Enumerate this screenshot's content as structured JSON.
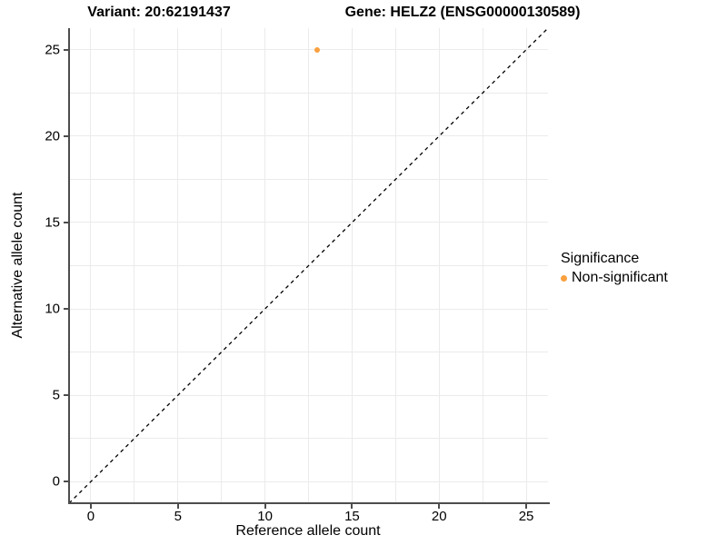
{
  "header": {
    "variant_title": "Variant: 20:62191437",
    "gene_title": "Gene: HELZ2 (ENSG00000130589)"
  },
  "chart_data": {
    "type": "scatter",
    "title_left": "Variant: 20:62191437",
    "title_right": "Gene: HELZ2 (ENSG00000130589)",
    "xlabel": "Reference allele count",
    "ylabel": "Alternative allele count",
    "xlim": [
      -1.25,
      26.25
    ],
    "ylim": [
      -1.25,
      26.25
    ],
    "xticks": [
      0,
      5,
      10,
      15,
      20,
      25
    ],
    "yticks": [
      0,
      5,
      10,
      15,
      20,
      25
    ],
    "minor_grid_step": 2.5,
    "grid": true,
    "points": [
      {
        "x": 13,
        "y": 25,
        "series": "Non-significant"
      }
    ],
    "reference_line": {
      "type": "identity",
      "slope": 1,
      "intercept": 0,
      "style": "dashed"
    },
    "legend": {
      "title": "Significance",
      "position": "right",
      "items": [
        {
          "label": "Non-significant",
          "color": "#F9A03F"
        }
      ]
    },
    "colors": {
      "point": "#F9A03F",
      "grid": "#EBEBEB",
      "axis": "#4D4D4D",
      "dashed_line": "#000000",
      "text": "#000000"
    }
  }
}
